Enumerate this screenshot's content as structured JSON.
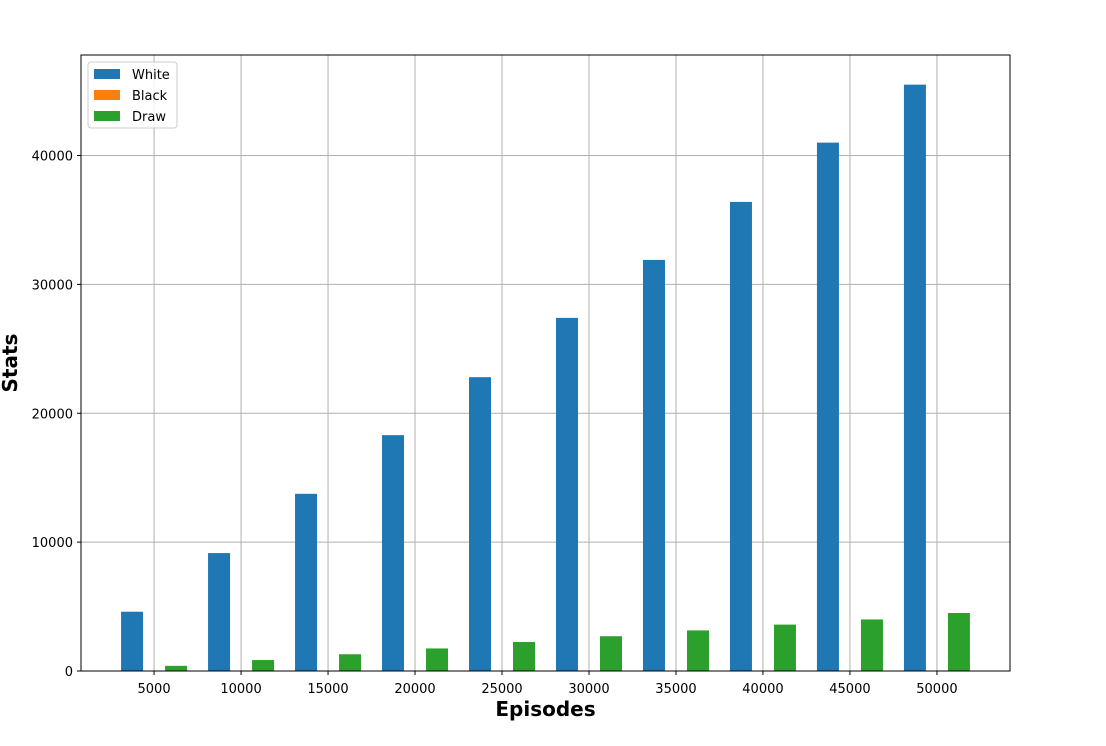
{
  "chart_data": {
    "type": "bar",
    "title": "",
    "xlabel": "Episodes",
    "ylabel": "Stats",
    "x": [
      5000,
      10000,
      15000,
      20000,
      25000,
      30000,
      35000,
      40000,
      45000,
      50000
    ],
    "xticks": [
      "5000",
      "10000",
      "15000",
      "20000",
      "25000",
      "30000",
      "35000",
      "40000",
      "45000",
      "50000"
    ],
    "yticks": [
      "0",
      "10000",
      "20000",
      "30000",
      "40000"
    ],
    "ylim": [
      0,
      47800
    ],
    "grid": true,
    "legend_placement": "upper-left",
    "series": [
      {
        "name": "White",
        "color": "#1f77b4",
        "values": [
          4600,
          9150,
          13750,
          18300,
          22800,
          27400,
          31900,
          36400,
          41000,
          45500
        ]
      },
      {
        "name": "Black",
        "color": "#ff7f0e",
        "values": [
          0,
          0,
          0,
          0,
          0,
          0,
          0,
          0,
          0,
          0
        ]
      },
      {
        "name": "Draw",
        "color": "#2ca02c",
        "values": [
          400,
          850,
          1300,
          1750,
          2250,
          2700,
          3150,
          3600,
          4000,
          4500
        ]
      }
    ]
  }
}
